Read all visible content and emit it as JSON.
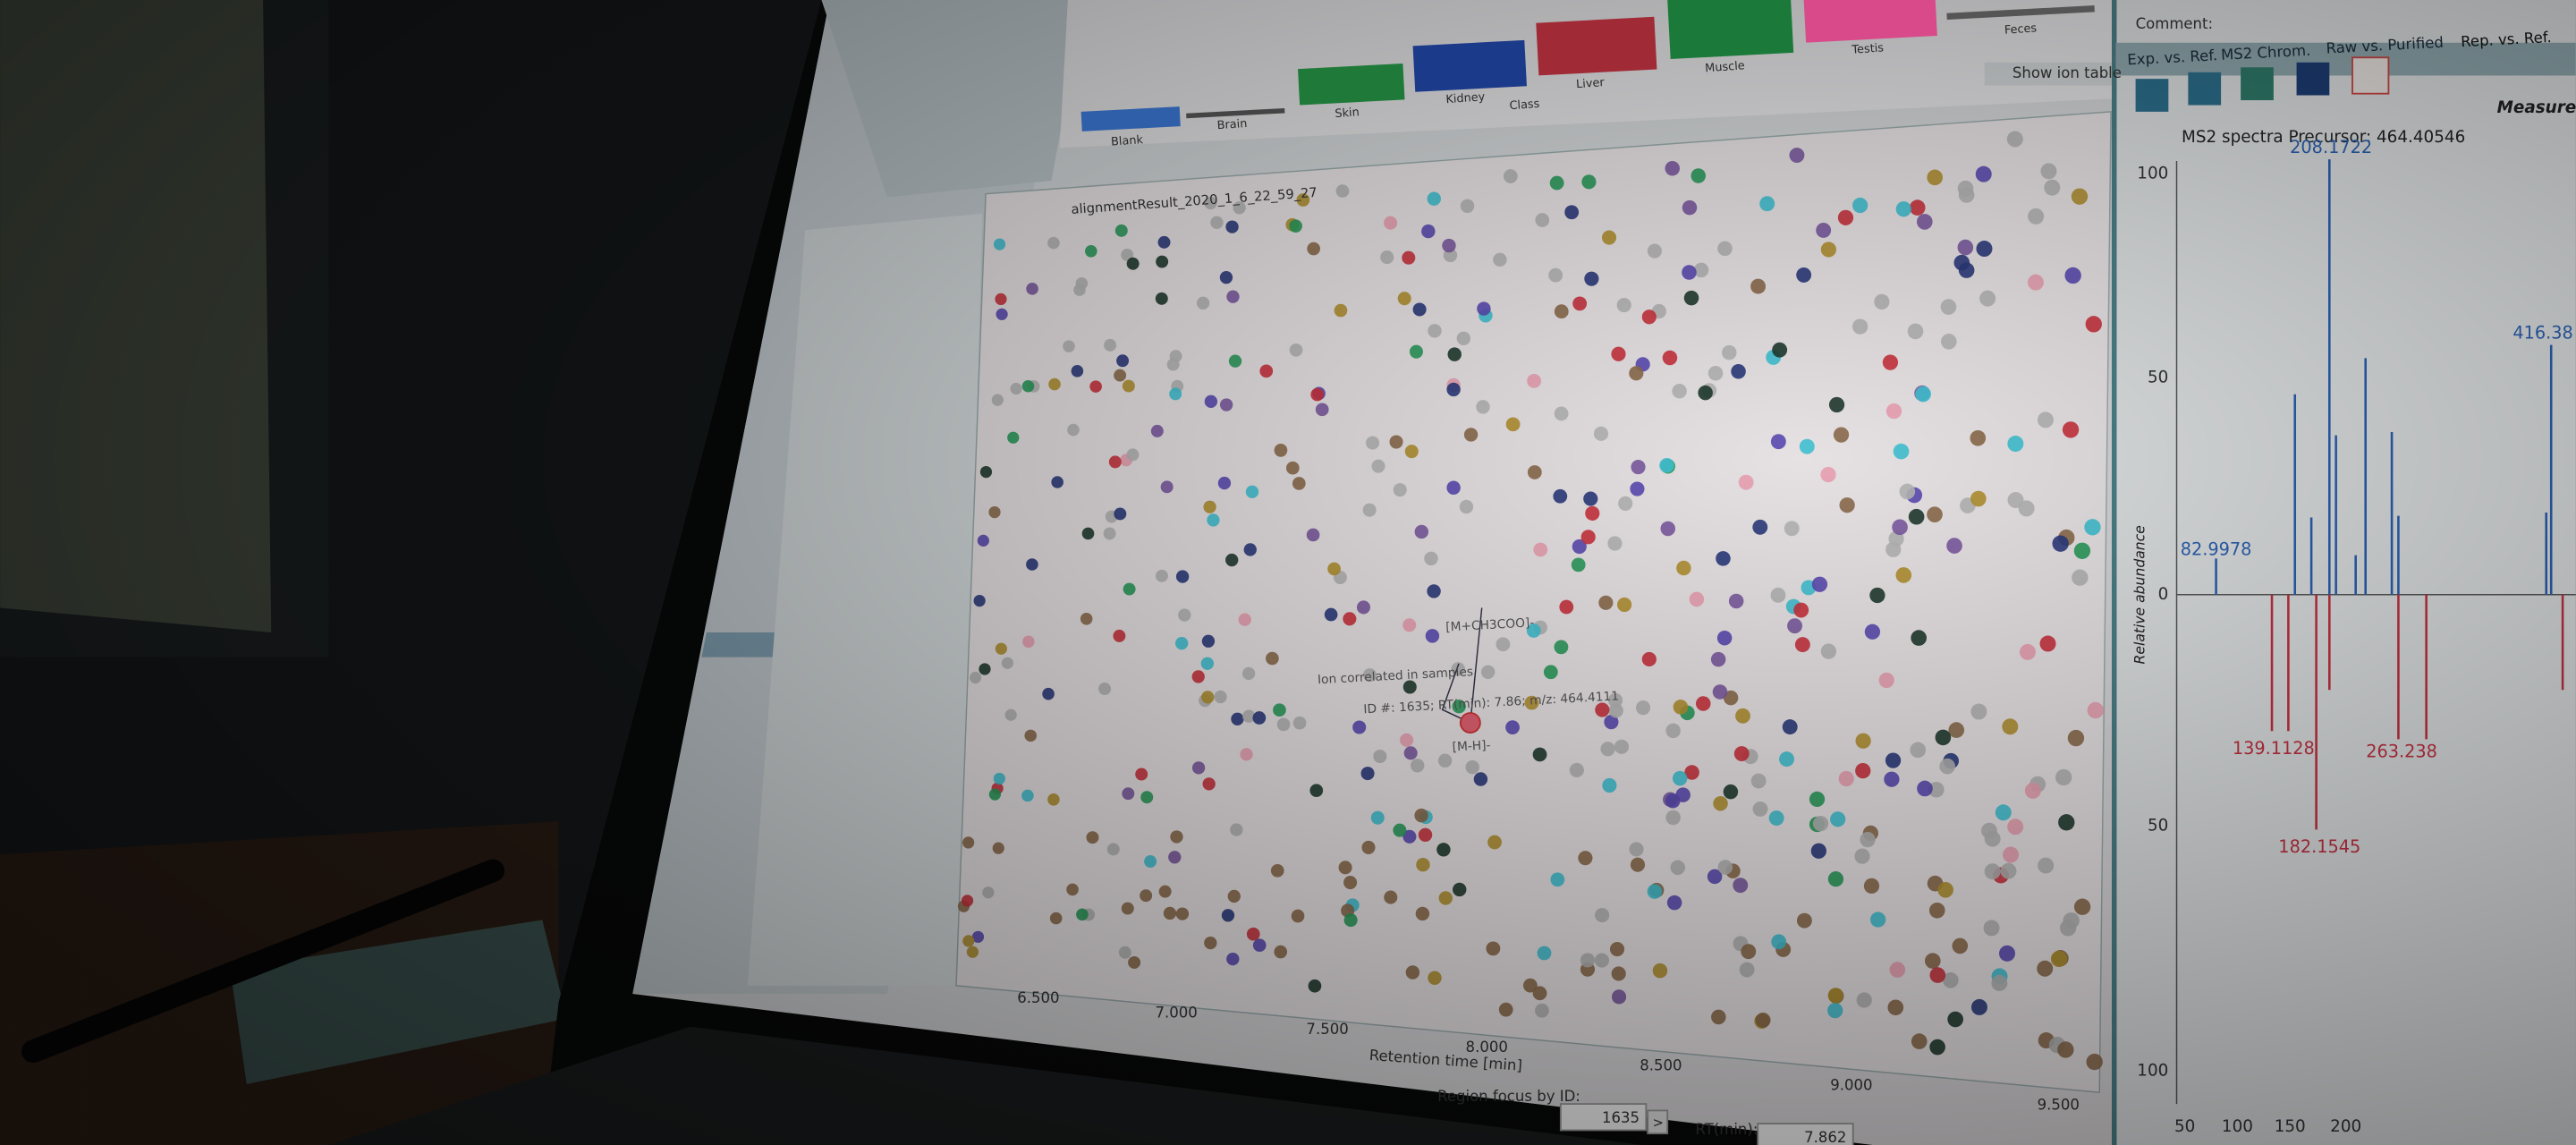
{
  "window": {
    "comment_label": "Comment:",
    "tabs": [
      "Exp. vs. Ref.",
      "MS2 Chrom.",
      "Raw vs. Purified",
      "Rep. vs. Ref."
    ]
  },
  "bar_panel": {
    "categories": [
      "Blank",
      "Brain",
      "Skin",
      "Kidney",
      "Class",
      "Liver",
      "Muscle",
      "Testis",
      "Feces"
    ],
    "show_ion_table": "Show ion table"
  },
  "scatter": {
    "title": "alignmentResult_2020_1_6_22_59_27",
    "xticks": [
      "6.500",
      "7.000",
      "7.500",
      "8.000",
      "8.500",
      "9.000",
      "9.500"
    ],
    "xlabel": "Retention time [min]",
    "annotations": [
      "[M+CH3COO]-",
      "Ion correlated in samples",
      "ID #: 1635; RT(min): 7.86; m/z: 464.4111",
      "[M-H]-"
    ]
  },
  "footer": {
    "region_label": "Region focus by ID:",
    "region_value": "1635",
    "button": ">",
    "rt_label": "RT(min):",
    "rt_value": "7.862"
  },
  "spectrum": {
    "title": "MS2 spectra Precursor: 464.40546",
    "measure": "Measure",
    "ylabel": "Relative abundance",
    "yticks": [
      "100",
      "50",
      "0",
      "50",
      "100"
    ],
    "xticks": [
      "50",
      "100",
      "150",
      "200"
    ],
    "peak_labels_top": [
      "208.1722",
      "416.38",
      "82.9978"
    ],
    "peak_labels_bottom": [
      "139.1128",
      "263.238",
      "182.1545"
    ]
  }
}
